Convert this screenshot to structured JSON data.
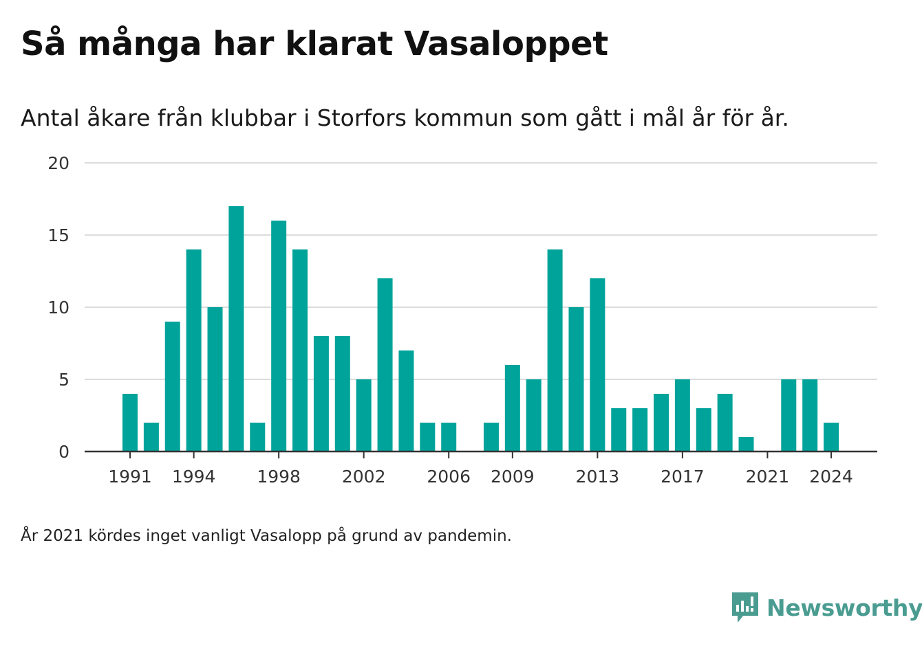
{
  "title": "Så många har klarat Vasaloppet",
  "subtitle": "Antal åkare från klubbar i Storfors kommun som gått i mål år för år.",
  "note": "År 2021 kördes inget vanligt Vasalopp på grund av pandemin.",
  "brand": {
    "name": "Newsworthy",
    "icon": "newsworthy-logo-icon",
    "color": "#4a9c91"
  },
  "chart_data": {
    "type": "bar",
    "x": [
      1991,
      1992,
      1993,
      1994,
      1995,
      1996,
      1997,
      1998,
      1999,
      2000,
      2001,
      2002,
      2003,
      2004,
      2005,
      2006,
      2007,
      2008,
      2009,
      2010,
      2011,
      2012,
      2013,
      2014,
      2015,
      2016,
      2017,
      2018,
      2019,
      2020,
      2021,
      2022,
      2023,
      2024
    ],
    "values": [
      4,
      2,
      9,
      14,
      10,
      17,
      2,
      16,
      14,
      8,
      8,
      5,
      12,
      7,
      2,
      2,
      0,
      2,
      6,
      5,
      14,
      10,
      12,
      3,
      3,
      4,
      5,
      3,
      4,
      1,
      0,
      5,
      5,
      2
    ],
    "x_ticks": [
      "1991",
      "1994",
      "1998",
      "2002",
      "2006",
      "2009",
      "2013",
      "2017",
      "2021",
      "2024"
    ],
    "y_ticks": [
      "0",
      "5",
      "10",
      "15",
      "20"
    ],
    "ylim": [
      0,
      20
    ],
    "grid": true,
    "bar_color": "#00a39a"
  }
}
